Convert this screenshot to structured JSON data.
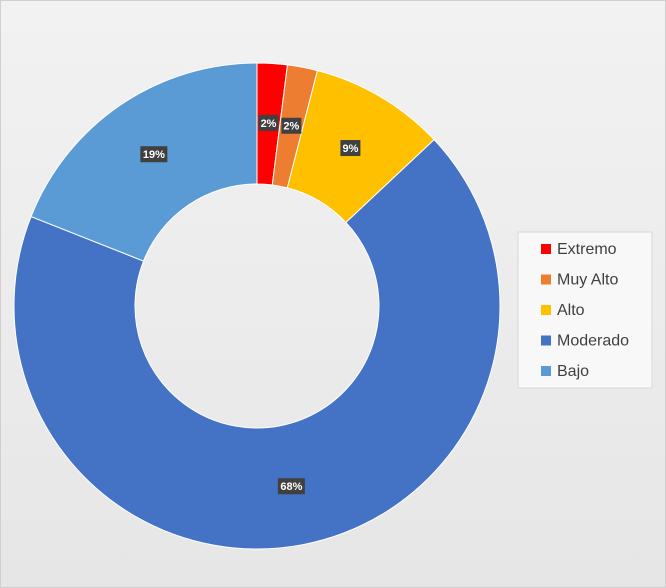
{
  "chart_data": {
    "type": "doughnut",
    "categories": [
      "Extremo",
      "Muy Alto",
      "Alto",
      "Moderado",
      "Bajo"
    ],
    "values": [
      2,
      2,
      9,
      68,
      19
    ],
    "value_labels": [
      "2%",
      "2%",
      "9%",
      "68%",
      "19%"
    ],
    "colors": [
      "#ff0000",
      "#ed7d31",
      "#ffc000",
      "#4472c4",
      "#5b9bd5"
    ],
    "legend": "right"
  }
}
